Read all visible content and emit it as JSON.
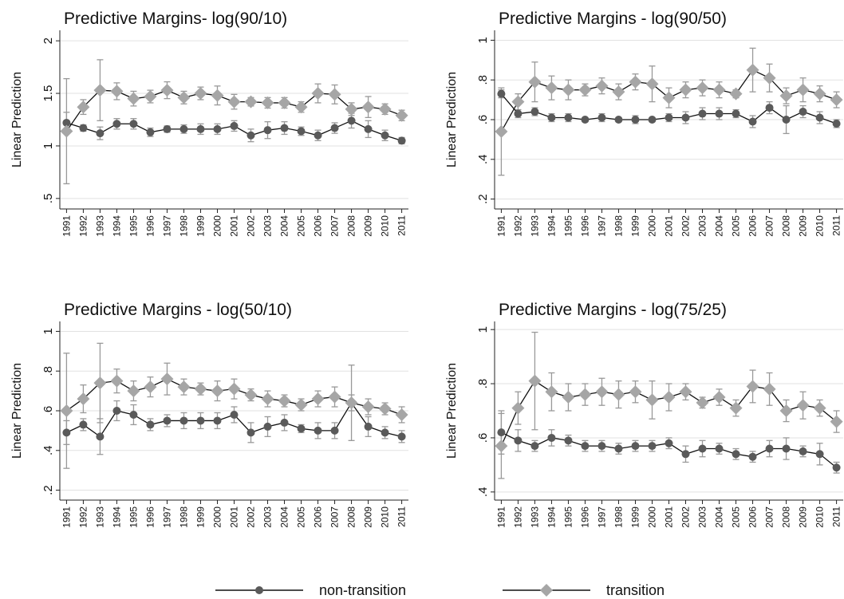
{
  "chart_data": [
    {
      "type": "line",
      "title": "Predictive Margins- log(90/10)",
      "y_label": "Linear Prediction",
      "x": [
        1991,
        1992,
        1993,
        1994,
        1995,
        1996,
        1997,
        1998,
        1999,
        2000,
        2001,
        2002,
        2003,
        2004,
        2005,
        2006,
        2007,
        2008,
        2009,
        2010,
        2011
      ],
      "xlim": [
        1990.6,
        2011.4
      ],
      "ylim": [
        0.4,
        2.1
      ],
      "yticks": [
        {
          "value": 0.5,
          "label": ".5"
        },
        1,
        1.5,
        2
      ],
      "grid": true,
      "series": [
        {
          "name": "non-transition",
          "color": "#5a5a5a",
          "marker": "circle",
          "values": [
            1.22,
            1.17,
            1.12,
            1.21,
            1.21,
            1.13,
            1.16,
            1.16,
            1.16,
            1.16,
            1.19,
            1.1,
            1.15,
            1.17,
            1.14,
            1.1,
            1.17,
            1.24,
            1.16,
            1.1,
            1.05
          ],
          "errors": [
            0.1,
            0.03,
            0.06,
            0.05,
            0.05,
            0.04,
            0.03,
            0.04,
            0.05,
            0.05,
            0.05,
            0.06,
            0.08,
            0.06,
            0.04,
            0.05,
            0.05,
            0.07,
            0.08,
            0.05,
            0.03
          ]
        },
        {
          "name": "transition",
          "color": "#a6a6a6",
          "marker": "diamond",
          "values": [
            1.14,
            1.37,
            1.53,
            1.52,
            1.45,
            1.47,
            1.53,
            1.46,
            1.5,
            1.48,
            1.42,
            1.42,
            1.41,
            1.41,
            1.37,
            1.5,
            1.49,
            1.35,
            1.37,
            1.35,
            1.29
          ],
          "errors": [
            0.5,
            0.07,
            0.29,
            0.08,
            0.07,
            0.06,
            0.08,
            0.06,
            0.06,
            0.09,
            0.07,
            0.04,
            0.05,
            0.05,
            0.05,
            0.09,
            0.09,
            0.06,
            0.1,
            0.05,
            0.05
          ]
        }
      ]
    },
    {
      "type": "line",
      "title": "Predictive Margins - log(90/50)",
      "y_label": "Linear Prediction",
      "x": [
        1991,
        1992,
        1993,
        1994,
        1995,
        1996,
        1997,
        1998,
        1999,
        2000,
        2001,
        2002,
        2003,
        2004,
        2005,
        2006,
        2007,
        2008,
        2009,
        2010,
        2011
      ],
      "xlim": [
        1990.6,
        2011.4
      ],
      "ylim": [
        0.15,
        1.05
      ],
      "yticks": [
        {
          "value": 0.2,
          "label": ".2"
        },
        {
          "value": 0.4,
          "label": ".4"
        },
        {
          "value": 0.6,
          "label": ".6"
        },
        {
          "value": 0.8,
          "label": ".8"
        },
        1
      ],
      "grid": true,
      "series": [
        {
          "color": "#5a5a5a",
          "marker": "circle",
          "values": [
            0.73,
            0.63,
            0.64,
            0.61,
            0.61,
            0.6,
            0.61,
            0.6,
            0.6,
            0.6,
            0.61,
            0.61,
            0.63,
            0.63,
            0.63,
            0.59,
            0.66,
            0.6,
            0.64,
            0.61,
            0.58
          ],
          "errors": [
            0.02,
            0.02,
            0.02,
            0.02,
            0.02,
            0.01,
            0.02,
            0.01,
            0.02,
            0.01,
            0.02,
            0.03,
            0.03,
            0.03,
            0.02,
            0.03,
            0.03,
            0.07,
            0.03,
            0.03,
            0.02
          ]
        },
        {
          "color": "#a6a6a6",
          "marker": "diamond",
          "values": [
            0.54,
            0.69,
            0.79,
            0.76,
            0.75,
            0.75,
            0.77,
            0.74,
            0.79,
            0.78,
            0.71,
            0.75,
            0.76,
            0.75,
            0.73,
            0.85,
            0.81,
            0.72,
            0.75,
            0.73,
            0.7
          ],
          "errors": [
            0.22,
            0.04,
            0.1,
            0.06,
            0.05,
            0.03,
            0.04,
            0.04,
            0.04,
            0.09,
            0.05,
            0.04,
            0.04,
            0.04,
            0.02,
            0.11,
            0.07,
            0.04,
            0.06,
            0.04,
            0.04
          ]
        }
      ]
    },
    {
      "type": "line",
      "title": "Predictive Margins - log(50/10)",
      "y_label": "Linear Prediction",
      "x": [
        1991,
        1992,
        1993,
        1994,
        1995,
        1996,
        1997,
        1998,
        1999,
        2000,
        2001,
        2002,
        2003,
        2004,
        2005,
        2006,
        2007,
        2008,
        2009,
        2010,
        2011
      ],
      "xlim": [
        1990.6,
        2011.4
      ],
      "ylim": [
        0.15,
        1.05
      ],
      "yticks": [
        {
          "value": 0.2,
          "label": ".2"
        },
        {
          "value": 0.4,
          "label": ".4"
        },
        {
          "value": 0.6,
          "label": ".6"
        },
        {
          "value": 0.8,
          "label": ".8"
        },
        1
      ],
      "grid": true,
      "series": [
        {
          "color": "#5a5a5a",
          "marker": "circle",
          "values": [
            0.49,
            0.53,
            0.47,
            0.6,
            0.58,
            0.53,
            0.55,
            0.55,
            0.55,
            0.55,
            0.58,
            0.49,
            0.52,
            0.54,
            0.51,
            0.5,
            0.5,
            0.64,
            0.52,
            0.49,
            0.47
          ],
          "errors": [
            0.06,
            0.03,
            0.09,
            0.05,
            0.05,
            0.03,
            0.03,
            0.04,
            0.04,
            0.04,
            0.04,
            0.05,
            0.05,
            0.04,
            0.02,
            0.04,
            0.04,
            0.19,
            0.05,
            0.03,
            0.03
          ]
        },
        {
          "color": "#a6a6a6",
          "marker": "diamond",
          "values": [
            0.6,
            0.66,
            0.74,
            0.75,
            0.7,
            0.72,
            0.76,
            0.72,
            0.71,
            0.7,
            0.71,
            0.68,
            0.66,
            0.65,
            0.63,
            0.66,
            0.67,
            0.64,
            0.62,
            0.61,
            0.58
          ],
          "errors": [
            0.29,
            0.07,
            0.2,
            0.06,
            0.05,
            0.05,
            0.08,
            0.04,
            0.03,
            0.05,
            0.05,
            0.03,
            0.04,
            0.03,
            0.03,
            0.04,
            0.05,
            0.04,
            0.04,
            0.03,
            0.04
          ]
        }
      ]
    },
    {
      "type": "line",
      "title": "Predictive Margins - log(75/25)",
      "y_label": "Linear Prediction",
      "x": [
        1991,
        1992,
        1993,
        1994,
        1995,
        1996,
        1997,
        1998,
        1999,
        2000,
        2001,
        2002,
        2003,
        2004,
        2005,
        2006,
        2007,
        2008,
        2009,
        2010,
        2011
      ],
      "xlim": [
        1990.6,
        2011.4
      ],
      "ylim": [
        0.37,
        1.03
      ],
      "yticks": [
        {
          "value": 0.4,
          "label": ".4"
        },
        {
          "value": 0.6,
          "label": ".6"
        },
        {
          "value": 0.8,
          "label": ".8"
        },
        1
      ],
      "grid": true,
      "series": [
        {
          "color": "#5a5a5a",
          "marker": "circle",
          "values": [
            0.62,
            0.59,
            0.57,
            0.6,
            0.59,
            0.57,
            0.57,
            0.56,
            0.57,
            0.57,
            0.58,
            0.54,
            0.56,
            0.56,
            0.54,
            0.53,
            0.56,
            0.56,
            0.55,
            0.54,
            0.49
          ],
          "errors": [
            0.08,
            0.04,
            0.02,
            0.03,
            0.02,
            0.02,
            0.02,
            0.02,
            0.02,
            0.02,
            0.02,
            0.03,
            0.03,
            0.02,
            0.02,
            0.02,
            0.03,
            0.04,
            0.02,
            0.04,
            0.02
          ]
        },
        {
          "color": "#a6a6a6",
          "marker": "diamond",
          "values": [
            0.57,
            0.71,
            0.81,
            0.77,
            0.75,
            0.76,
            0.77,
            0.76,
            0.77,
            0.74,
            0.75,
            0.77,
            0.73,
            0.75,
            0.71,
            0.79,
            0.78,
            0.7,
            0.72,
            0.71,
            0.66
          ],
          "errors": [
            0.12,
            0.06,
            0.18,
            0.07,
            0.05,
            0.04,
            0.05,
            0.05,
            0.04,
            0.07,
            0.05,
            0.03,
            0.02,
            0.03,
            0.03,
            0.06,
            0.06,
            0.04,
            0.05,
            0.03,
            0.04
          ]
        }
      ]
    }
  ]
}
